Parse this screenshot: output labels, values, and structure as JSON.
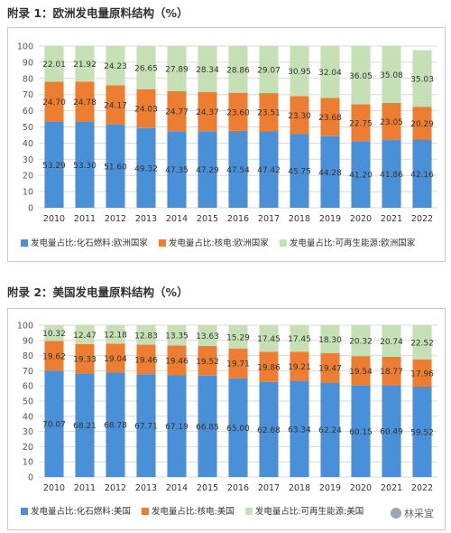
{
  "colors": {
    "fossil": "#4a90d9",
    "nuclear": "#ed7d31",
    "renewable": "#c5e0b4",
    "grid": "#d9d9d9",
    "axis_text": "#555555"
  },
  "chart_data": [
    {
      "type": "bar",
      "stacked": true,
      "title": "附录 1：欧洲发电量原料结构（%）",
      "categories": [
        "2010",
        "2011",
        "2012",
        "2013",
        "2014",
        "2015",
        "2016",
        "2017",
        "2018",
        "2019",
        "2020",
        "2021",
        "2022"
      ],
      "ylim": [
        0,
        100
      ],
      "yticks": [
        0,
        10,
        20,
        30,
        40,
        50,
        60,
        70,
        80,
        90,
        100
      ],
      "grid": true,
      "legend_position": "bottom",
      "series": [
        {
          "name": "发电量占比:化石燃料:欧洲国家",
          "color": "#4a90d9",
          "values": [
            53.29,
            53.3,
            51.6,
            49.32,
            47.35,
            47.29,
            47.54,
            47.42,
            45.75,
            44.28,
            41.2,
            41.86,
            42.16
          ]
        },
        {
          "name": "发电量占比:核电:欧洲国家",
          "color": "#ed7d31",
          "values": [
            24.7,
            24.78,
            24.17,
            24.03,
            24.77,
            24.37,
            23.6,
            23.51,
            23.3,
            23.68,
            22.75,
            23.05,
            20.29
          ]
        },
        {
          "name": "发电量占比:可再生能源:欧洲国家",
          "color": "#c5e0b4",
          "values": [
            22.01,
            21.92,
            24.23,
            26.65,
            27.89,
            28.34,
            28.86,
            29.07,
            30.95,
            32.04,
            36.05,
            35.08,
            35.03
          ]
        }
      ]
    },
    {
      "type": "bar",
      "stacked": true,
      "title": "附录 2：美国发电量原料结构（%）",
      "categories": [
        "2010",
        "2011",
        "2012",
        "2013",
        "2014",
        "2015",
        "2016",
        "2017",
        "2018",
        "2019",
        "2020",
        "2021",
        "2022"
      ],
      "ylim": [
        0,
        100
      ],
      "yticks": [
        0,
        10,
        20,
        30,
        40,
        50,
        60,
        70,
        80,
        90,
        100
      ],
      "grid": true,
      "legend_position": "bottom",
      "series": [
        {
          "name": "发电量占比:化石燃料:美国",
          "color": "#4a90d9",
          "values": [
            70.07,
            68.21,
            68.78,
            67.71,
            67.19,
            66.85,
            65.0,
            62.68,
            63.34,
            62.24,
            60.15,
            60.49,
            59.52
          ]
        },
        {
          "name": "发电量占比:核电:美国",
          "color": "#ed7d31",
          "values": [
            19.62,
            19.33,
            19.04,
            19.46,
            19.46,
            19.52,
            19.71,
            19.86,
            19.21,
            19.47,
            19.54,
            18.77,
            17.96
          ]
        },
        {
          "name": "发电量占比:可再生能源:美国",
          "color": "#c5e0b4",
          "values": [
            10.32,
            12.47,
            12.18,
            12.83,
            13.35,
            13.63,
            15.29,
            17.45,
            17.45,
            18.3,
            20.32,
            20.74,
            22.52
          ]
        }
      ]
    }
  ],
  "watermark": {
    "text": "林采宜",
    "icon": "wechat-icon"
  }
}
